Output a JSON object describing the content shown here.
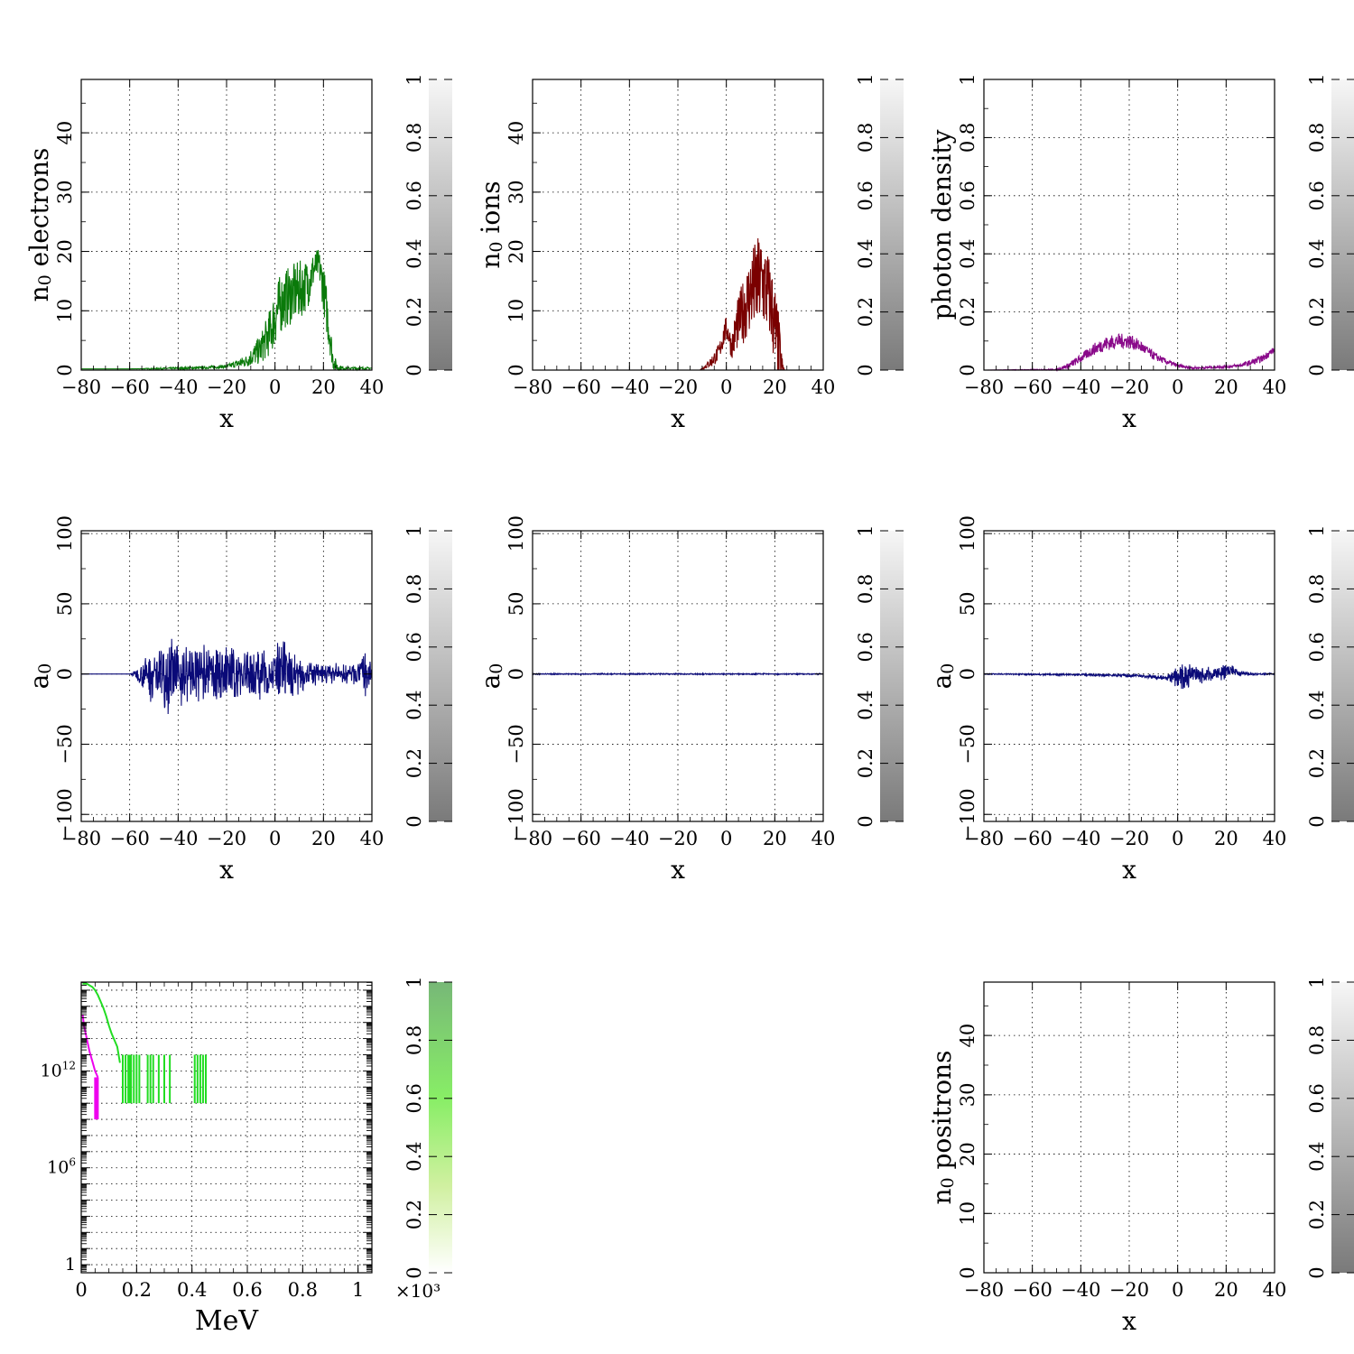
{
  "figure": {
    "colors": {
      "electrons": "#0a7a0a",
      "ions": "#7a0000",
      "photons": "#8a0a8a",
      "field": "#0a0a78",
      "spectrum_green": "#22dd22",
      "spectrum_magenta": "#ee00ee"
    },
    "grayscale_colorbar": {
      "ticks": [
        "0",
        "0.2",
        "0.4",
        "0.6",
        "0.8",
        "1"
      ]
    },
    "green_colorbar": {
      "ticks": [
        "0",
        "0.2",
        "0.4",
        "0.6",
        "0.8",
        "1"
      ],
      "scale_label": "×10³"
    }
  },
  "chart_data": [
    {
      "id": "electrons",
      "type": "line",
      "title": "",
      "xlabel": "x",
      "ylabel_main": "n",
      "ylabel_sub": "0",
      "ylabel_rest": " electrons",
      "xlim": [
        -80,
        40
      ],
      "ylim": [
        0,
        49
      ],
      "xticks": [
        "−80",
        "−60",
        "−40",
        "−20",
        "0",
        "20",
        "40"
      ],
      "yticks": [
        "0",
        "10",
        "20",
        "30",
        "40"
      ],
      "ytick_values": [
        0,
        10,
        20,
        30,
        40
      ],
      "grid": true,
      "color": "#0a7a0a",
      "series": [
        {
          "x": [
            -80,
            -60,
            -40,
            -30,
            -20,
            -12,
            -6,
            -2,
            0,
            2,
            4,
            6,
            8,
            10,
            12,
            14,
            16,
            18,
            20,
            22,
            24,
            26,
            30,
            35,
            40
          ],
          "y": [
            0.2,
            0.2,
            0.3,
            0.4,
            0.6,
            1.5,
            3.5,
            6.5,
            9,
            11,
            12,
            12.5,
            13,
            13.5,
            14,
            15,
            17,
            18,
            14,
            8,
            1.5,
            0.4,
            0.3,
            0.3,
            0.3
          ],
          "spread": [
            0,
            0,
            0.2,
            0.2,
            0.3,
            1,
            2.5,
            4,
            5,
            5,
            5,
            5,
            5,
            5,
            4.5,
            4,
            3,
            2.5,
            4,
            4,
            1.5,
            0.5,
            0.2,
            0.2,
            0.2
          ]
        }
      ]
    },
    {
      "id": "ions",
      "type": "line",
      "title": "",
      "xlabel": "x",
      "ylabel_main": "n",
      "ylabel_sub": "0",
      "ylabel_rest": " ions",
      "xlim": [
        -80,
        40
      ],
      "ylim": [
        0,
        49
      ],
      "xticks": [
        "−80",
        "−60",
        "−40",
        "−20",
        "0",
        "20",
        "40"
      ],
      "yticks": [
        "0",
        "10",
        "20",
        "30",
        "40"
      ],
      "ytick_values": [
        0,
        10,
        20,
        30,
        40
      ],
      "grid": true,
      "color": "#7a0000",
      "series": [
        {
          "x": [
            -80,
            -20,
            -11,
            -9,
            -6,
            -3,
            -1,
            0,
            1,
            2,
            3,
            4,
            6,
            8,
            10,
            12,
            14,
            16,
            18,
            19,
            20,
            21,
            22,
            23,
            24,
            30,
            40
          ],
          "y": [
            0,
            0,
            0,
            0.5,
            1.5,
            3,
            6,
            7,
            6,
            4,
            5,
            7,
            9,
            11,
            13,
            14,
            15,
            14,
            12,
            10,
            7,
            4,
            2,
            0.5,
            0,
            0,
            0
          ],
          "spread": [
            0,
            0,
            0,
            0.3,
            1,
            1.5,
            2,
            2,
            2,
            2,
            3,
            4,
            5,
            6,
            7,
            8,
            8,
            8,
            7,
            7,
            8,
            8,
            6,
            2,
            0,
            0,
            0
          ]
        }
      ]
    },
    {
      "id": "photons",
      "type": "line",
      "title": "",
      "xlabel": "x",
      "ylabel_main": "photon density",
      "ylabel_sub": "",
      "ylabel_rest": "",
      "xlim": [
        -80,
        40
      ],
      "ylim": [
        0,
        1
      ],
      "xticks": [
        "−80",
        "−60",
        "−40",
        "−20",
        "0",
        "20",
        "40"
      ],
      "yticks": [
        "0",
        "0.2",
        "0.4",
        "0.6",
        "0.8",
        "1"
      ],
      "ytick_values": [
        0,
        0.2,
        0.4,
        0.6,
        0.8,
        1
      ],
      "grid": true,
      "color": "#8a0a8a",
      "series": [
        {
          "x": [
            -80,
            -50,
            -45,
            -40,
            -35,
            -30,
            -25,
            -20,
            -15,
            -10,
            -5,
            0,
            5,
            10,
            15,
            20,
            25,
            30,
            35,
            38,
            40
          ],
          "y": [
            0,
            0.002,
            0.015,
            0.04,
            0.07,
            0.09,
            0.1,
            0.1,
            0.08,
            0.05,
            0.03,
            0.015,
            0.008,
            0.008,
            0.01,
            0.012,
            0.015,
            0.025,
            0.04,
            0.06,
            0.07
          ],
          "spread": [
            0,
            0.002,
            0.01,
            0.015,
            0.02,
            0.025,
            0.025,
            0.025,
            0.02,
            0.015,
            0.01,
            0.006,
            0.004,
            0.004,
            0.004,
            0.005,
            0.006,
            0.01,
            0.012,
            0.012,
            0.01
          ]
        }
      ]
    },
    {
      "id": "field_1",
      "type": "line",
      "title": "",
      "xlabel": "x",
      "ylabel_main": "a",
      "ylabel_sub": "0",
      "ylabel_rest": "",
      "xlim": [
        -80,
        40
      ],
      "ylim": [
        -105,
        102
      ],
      "xticks": [
        "−80",
        "−60",
        "−40",
        "−20",
        "0",
        "20",
        "40"
      ],
      "yticks": [
        "−100",
        "−50",
        "0",
        "50",
        "100"
      ],
      "ytick_values": [
        -100,
        -50,
        0,
        50,
        100
      ],
      "grid": true,
      "color": "#0a0a78",
      "series": [
        {
          "x": [
            -80,
            -60,
            -58,
            -55,
            -50,
            -45,
            -40,
            -30,
            -20,
            -10,
            0,
            3,
            5,
            10,
            15,
            20,
            25,
            30,
            35,
            37,
            40
          ],
          "amp": [
            0,
            0,
            3,
            10,
            25,
            30,
            25,
            22,
            22,
            20,
            20,
            28,
            20,
            15,
            10,
            8,
            8,
            8,
            10,
            20,
            5
          ]
        }
      ]
    },
    {
      "id": "field_2",
      "type": "line",
      "title": "",
      "xlabel": "x",
      "ylabel_main": "a",
      "ylabel_sub": "0",
      "ylabel_rest": "",
      "xlim": [
        -80,
        40
      ],
      "ylim": [
        -105,
        102
      ],
      "xticks": [
        "−80",
        "−60",
        "−40",
        "−20",
        "0",
        "20",
        "40"
      ],
      "yticks": [
        "−100",
        "−50",
        "0",
        "50",
        "100"
      ],
      "ytick_values": [
        -100,
        -50,
        0,
        50,
        100
      ],
      "grid": true,
      "color": "#0a0a78",
      "series": [
        {
          "x": [
            -80,
            40
          ],
          "amp": [
            0.5,
            0.5
          ]
        }
      ]
    },
    {
      "id": "field_3",
      "type": "line",
      "title": "",
      "xlabel": "x",
      "ylabel_main": "a",
      "ylabel_sub": "0",
      "ylabel_rest": "",
      "xlim": [
        -80,
        40
      ],
      "ylim": [
        -105,
        102
      ],
      "xticks": [
        "−80",
        "−60",
        "−40",
        "−20",
        "0",
        "20",
        "40"
      ],
      "yticks": [
        "−100",
        "−50",
        "0",
        "50",
        "100"
      ],
      "ytick_values": [
        -100,
        -50,
        0,
        50,
        100
      ],
      "grid": true,
      "color": "#0a0a78",
      "series": [
        {
          "x": [
            -80,
            -40,
            -20,
            -10,
            -5,
            0,
            2,
            5,
            8,
            10,
            15,
            20,
            22,
            25,
            30,
            40
          ],
          "amp": [
            0.5,
            0.8,
            1.2,
            1.5,
            2,
            8,
            12,
            10,
            8,
            6,
            6,
            6,
            5,
            3,
            1,
            0.5
          ],
          "offset": [
            0,
            -0.5,
            -1,
            -2,
            -3,
            -2,
            -4,
            0,
            -2,
            -1,
            0,
            2,
            3,
            1,
            0,
            0
          ]
        }
      ]
    },
    {
      "id": "spectrum",
      "type": "line",
      "title": "",
      "xlabel": "MeV",
      "ylabel_main": "",
      "ylabel_sub": "",
      "ylabel_rest": "",
      "xlim": [
        0,
        1.05
      ],
      "ylog_lim": [
        -0.5,
        17.5
      ],
      "yscale": "log",
      "xticks": [
        "0",
        "0.2",
        "0.4",
        "0.6",
        "0.8",
        "1"
      ],
      "xtick_values": [
        0,
        0.2,
        0.4,
        0.6,
        0.8,
        1
      ],
      "yticks": [
        {
          "label": "1",
          "exp": 0
        },
        {
          "label": "10",
          "sup": "6",
          "exp": 6
        },
        {
          "label": "10",
          "sup": "12",
          "exp": 12
        }
      ],
      "grid": true,
      "series": [
        {
          "color": "#22dd22",
          "x": [
            0.005,
            0.02,
            0.03,
            0.04,
            0.05,
            0.06,
            0.07,
            0.08,
            0.09,
            0.1,
            0.11,
            0.12,
            0.13,
            0.14
          ],
          "log10_y": [
            17.4,
            17.4,
            17.3,
            17.2,
            17.0,
            16.7,
            16.3,
            15.9,
            15.4,
            14.8,
            14.3,
            13.9,
            13.5,
            12.5
          ]
        },
        {
          "color": "#ee00ee",
          "x": [
            0.005,
            0.01,
            0.02,
            0.03,
            0.04,
            0.05,
            0.06
          ],
          "log10_y": [
            15.5,
            14.8,
            14.0,
            13.2,
            12.6,
            12.0,
            11.6
          ]
        }
      ],
      "spikes": [
        {
          "color": "#ee00ee",
          "x": [
            0.05,
            0.052,
            0.054,
            0.056,
            0.058,
            0.06
          ],
          "top": 11.6,
          "bottom": 9.0
        },
        {
          "color": "#22dd22",
          "x": [
            0.15,
            0.16,
            0.17,
            0.175,
            0.18,
            0.19,
            0.2,
            0.21,
            0.24,
            0.25,
            0.26,
            0.28,
            0.3,
            0.32,
            0.41,
            0.42,
            0.43,
            0.44,
            0.45
          ],
          "top": 13.0,
          "bottom": 10.0
        }
      ]
    },
    {
      "id": "positrons",
      "type": "line",
      "title": "",
      "xlabel": "x",
      "ylabel_main": "n",
      "ylabel_sub": "0",
      "ylabel_rest": " positrons",
      "xlim": [
        -80,
        40
      ],
      "ylim": [
        0,
        49
      ],
      "xticks": [
        "−80",
        "−60",
        "−40",
        "−20",
        "0",
        "20",
        "40"
      ],
      "yticks": [
        "0",
        "10",
        "20",
        "30",
        "40"
      ],
      "ytick_values": [
        0,
        10,
        20,
        30,
        40
      ],
      "grid": true,
      "color": "#000000",
      "series": []
    }
  ]
}
